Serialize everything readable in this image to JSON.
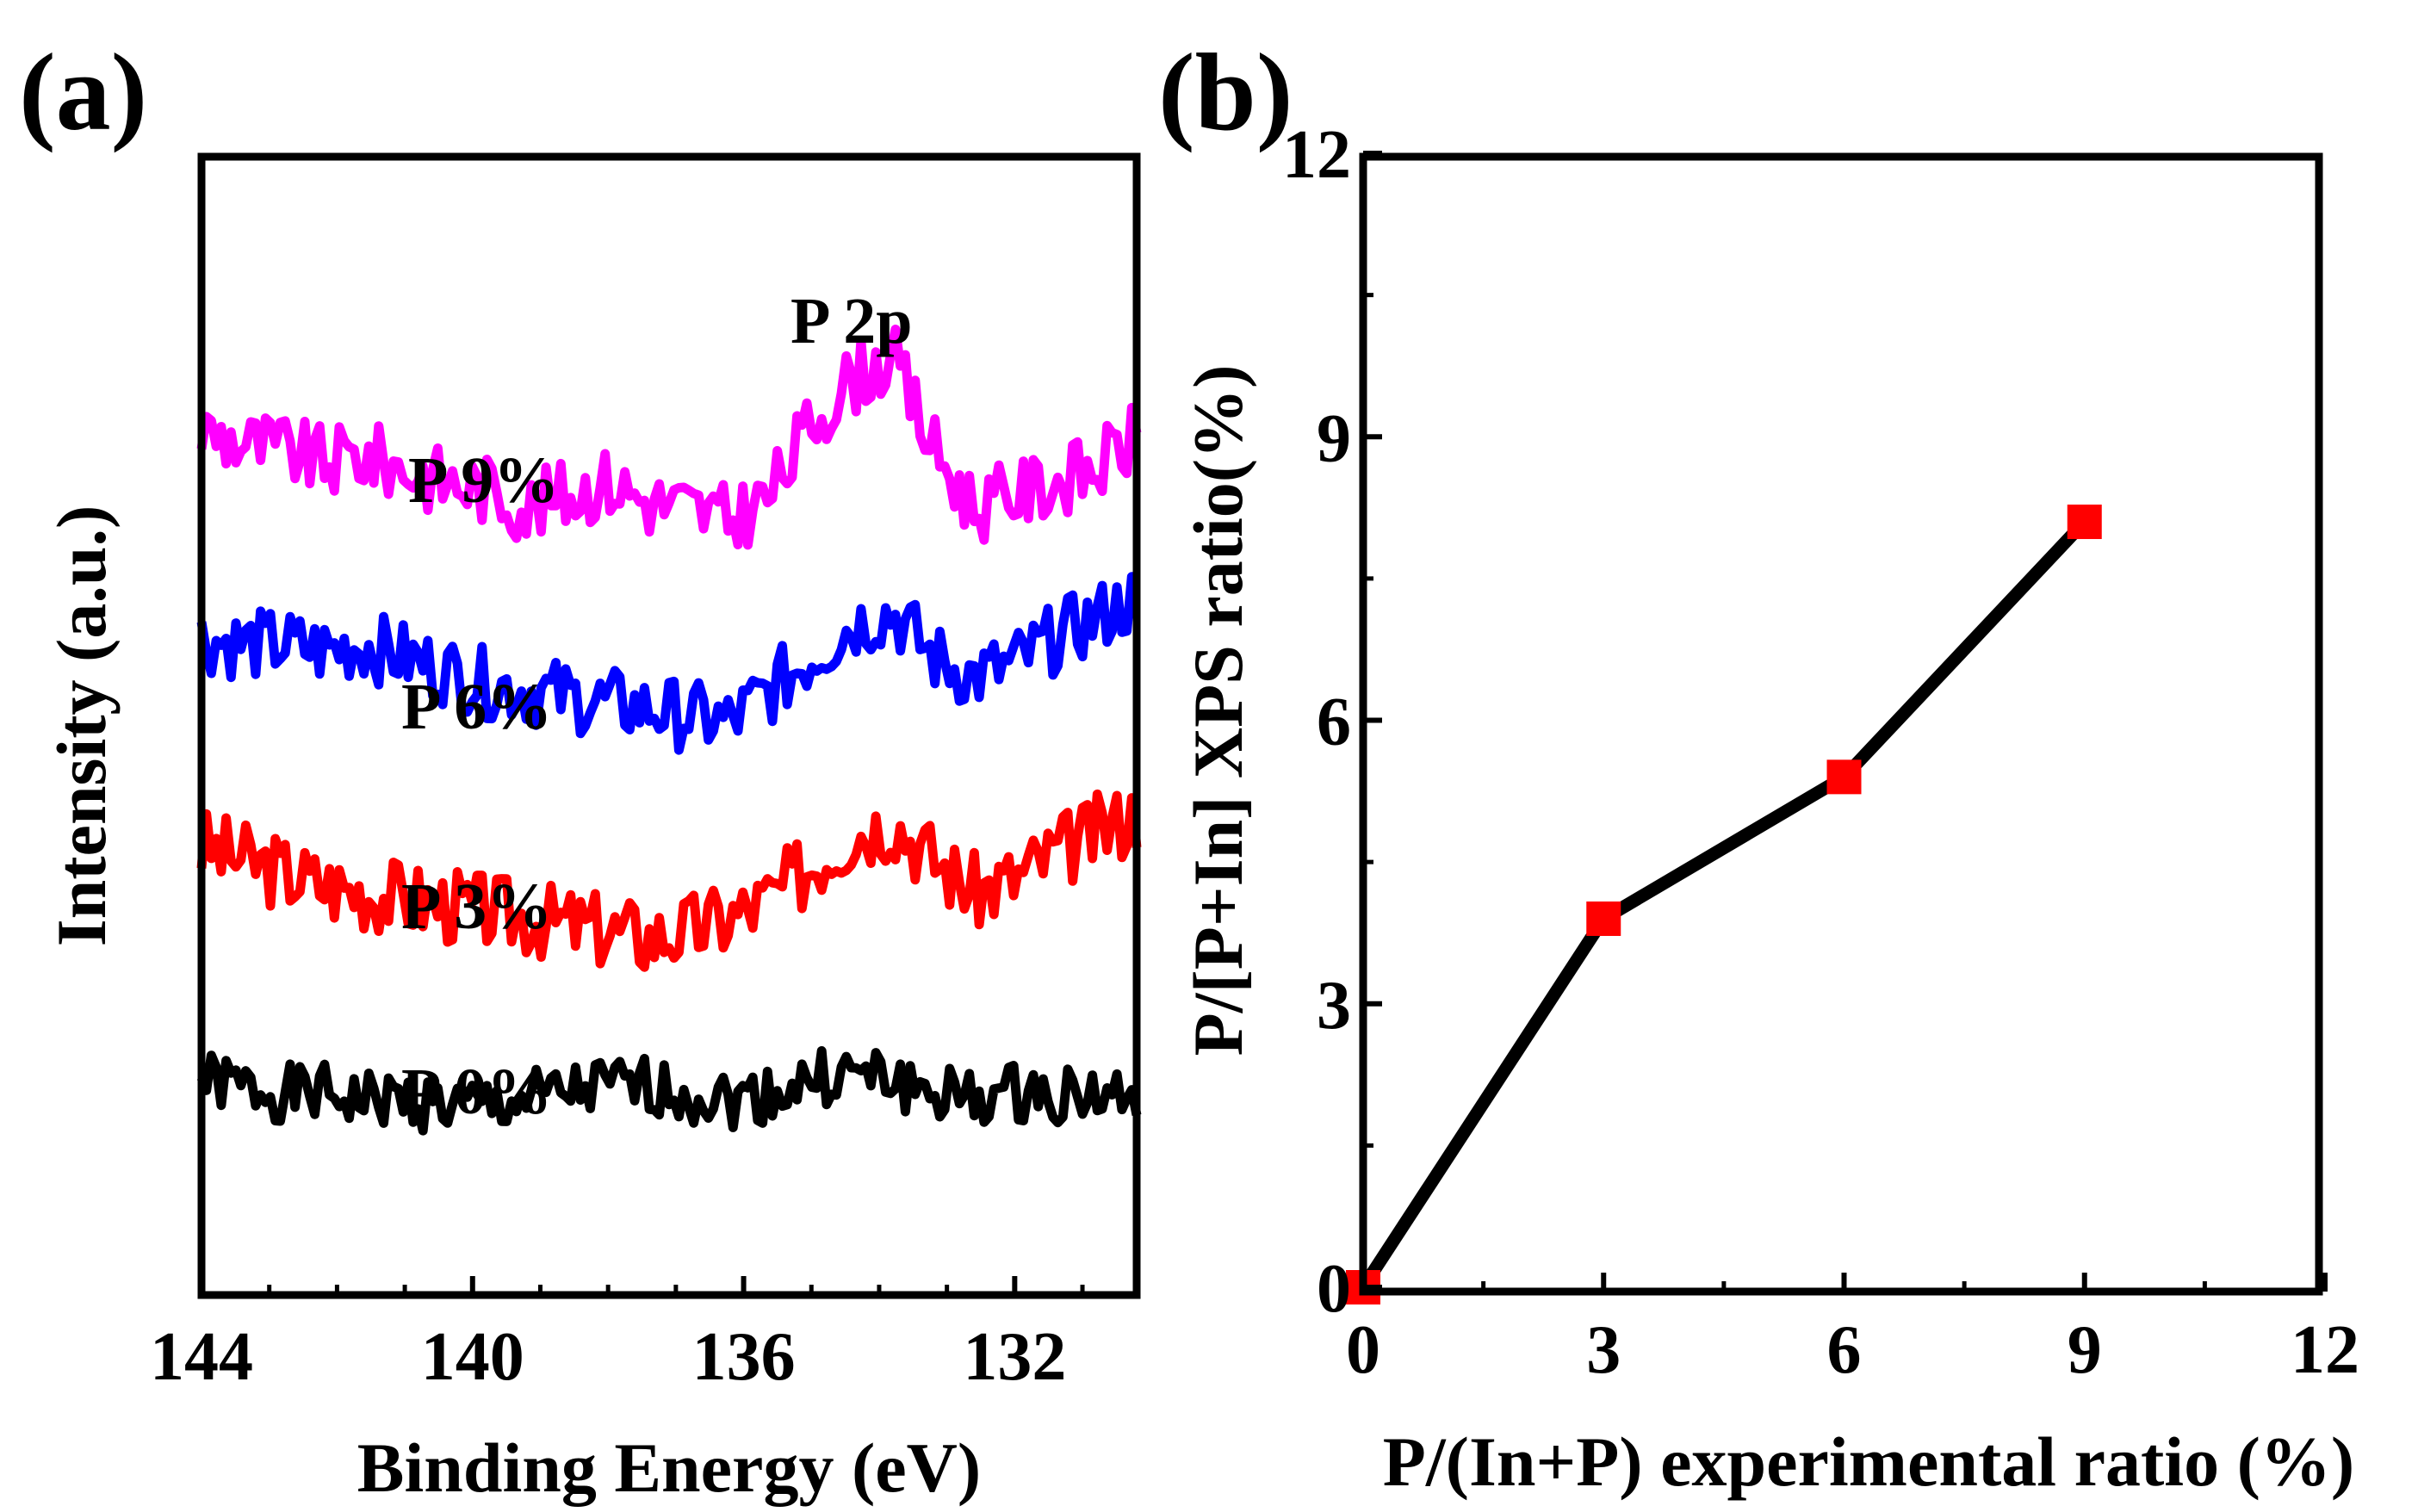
{
  "chart_data": [
    {
      "panel": "(a)",
      "type": "line",
      "title": "",
      "xlabel": "Binding Energy (eV)",
      "ylabel": "Intensity (a.u.)",
      "xlim": [
        144,
        130.2
      ],
      "x_reversed": true,
      "xticks": [
        144,
        140,
        136,
        132
      ],
      "yticks": [],
      "peak_label": "P 2p",
      "x": [
        144.0,
        143.4,
        142.8,
        142.2,
        141.6,
        141.0,
        140.4,
        139.8,
        139.2,
        138.6,
        138.0,
        137.4,
        136.8,
        136.2,
        135.6,
        135.0,
        134.4,
        133.8,
        133.2,
        132.6,
        132.0,
        131.4,
        130.8,
        130.2
      ],
      "series": [
        {
          "name": "P 9%",
          "color": "#ff00ff",
          "values": [
            0.78,
            0.76,
            0.75,
            0.73,
            0.74,
            0.72,
            0.7,
            0.69,
            0.66,
            0.68,
            0.7,
            0.67,
            0.66,
            0.64,
            0.68,
            0.79,
            0.86,
            0.89,
            0.75,
            0.66,
            0.68,
            0.7,
            0.72,
            0.77
          ],
          "noise_amp": 0.055,
          "seed": 9
        },
        {
          "name": "P 6%",
          "color": "#0000ff",
          "values": [
            0.46,
            0.45,
            0.45,
            0.44,
            0.45,
            0.43,
            0.41,
            0.39,
            0.38,
            0.37,
            0.36,
            0.35,
            0.34,
            0.33,
            0.38,
            0.43,
            0.48,
            0.5,
            0.43,
            0.4,
            0.42,
            0.46,
            0.49,
            0.52
          ],
          "noise_amp": 0.055,
          "seed": 6
        },
        {
          "name": "P 3%",
          "color": "#ff0000",
          "values": [
            0.14,
            0.12,
            0.1,
            0.08,
            0.07,
            0.06,
            0.05,
            0.04,
            0.03,
            0.02,
            0.01,
            0.0,
            0.01,
            0.03,
            0.06,
            0.11,
            0.16,
            0.18,
            0.12,
            0.07,
            0.09,
            0.13,
            0.16,
            0.19
          ],
          "noise_amp": 0.06,
          "seed": 3
        },
        {
          "name": "P 0%",
          "color": "#000000",
          "values": [
            -0.22,
            -0.23,
            -0.24,
            -0.24,
            -0.25,
            -0.25,
            -0.26,
            -0.26,
            -0.25,
            -0.24,
            -0.23,
            -0.23,
            -0.24,
            -0.25,
            -0.24,
            -0.22,
            -0.21,
            -0.22,
            -0.24,
            -0.25,
            -0.24,
            -0.24,
            -0.24,
            -0.25
          ],
          "noise_amp": 0.045,
          "seed": 1
        }
      ]
    },
    {
      "panel": "(b)",
      "type": "line",
      "title": "",
      "xlabel": "P/(In+P) experimental ratio (%)",
      "ylabel": "P/[P+In] XPS ratio(%)",
      "xlim": [
        0,
        12
      ],
      "ylim": [
        0,
        12
      ],
      "xticks": [
        0,
        3,
        6,
        9,
        12
      ],
      "yticks": [
        0,
        3,
        6,
        9,
        12
      ],
      "x": [
        0,
        3,
        6,
        9
      ],
      "series": [
        {
          "name": "XPS ratio",
          "line_color": "#000000",
          "marker_color": "#ff0000",
          "marker": "square",
          "values": [
            0,
            3.9,
            5.4,
            8.1
          ]
        }
      ]
    }
  ]
}
